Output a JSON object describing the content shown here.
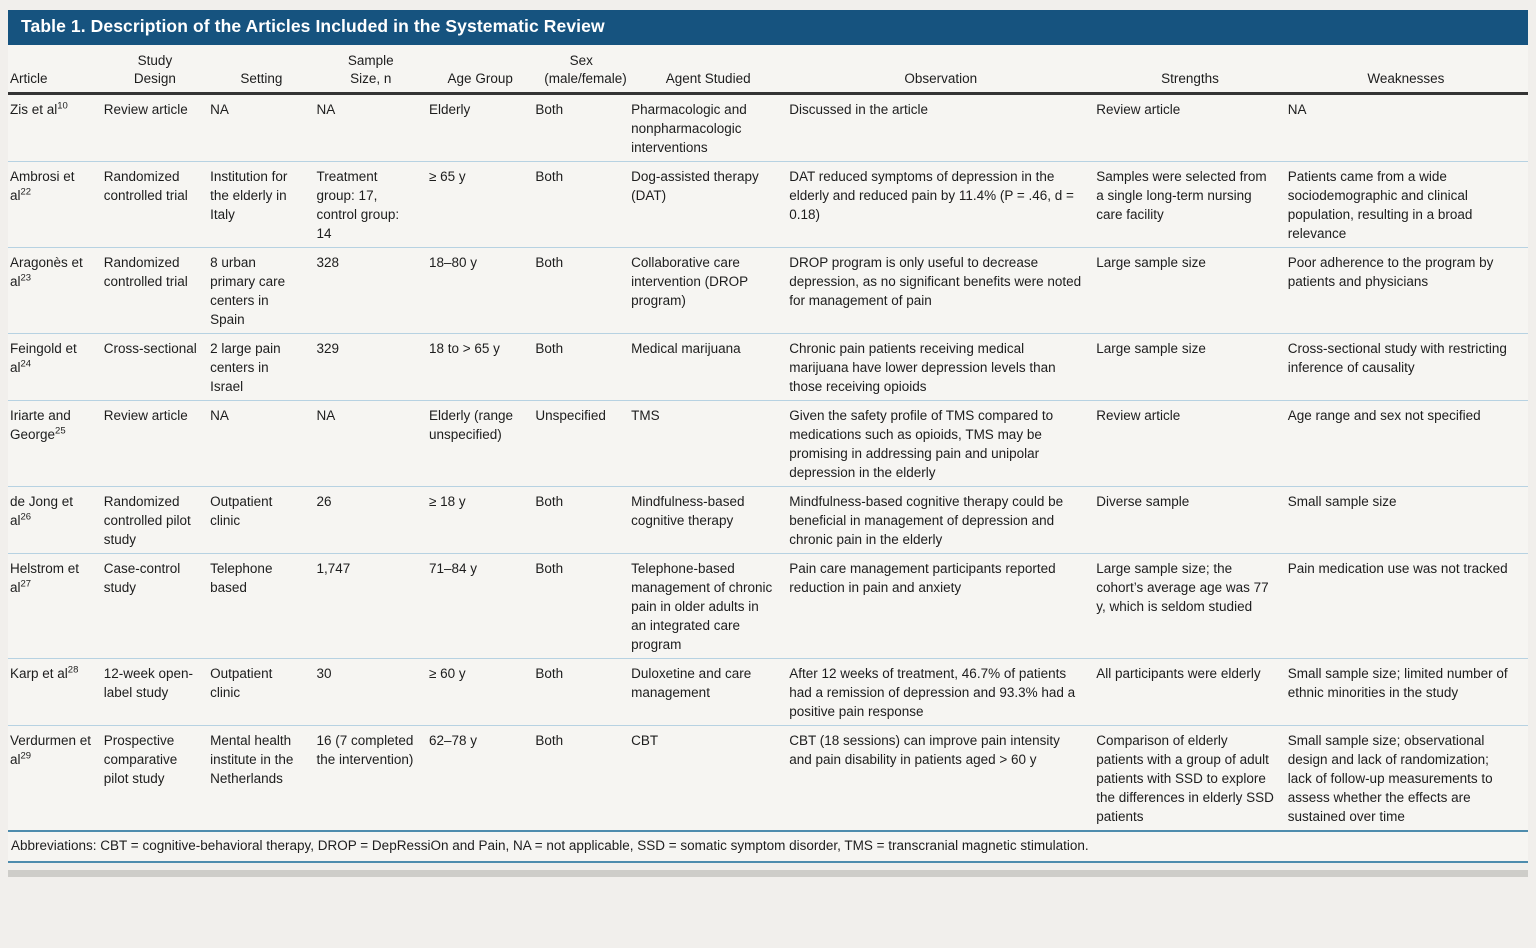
{
  "title": "Table 1. Description of the Articles Included in the Systematic Review",
  "footnote": "Abbreviations: CBT = cognitive-behavioral therapy, DROP = DepRessiOn and Pain, NA = not applicable, SSD = somatic symptom disorder, TMS = transcranial magnetic stimulation.",
  "colors": {
    "title_bar": "#16537f",
    "header_rule": "#343434",
    "row_divider": "#b7d2e2",
    "foot_rule": "#4e8cad",
    "table_background": "#f6f5f2"
  },
  "columns": [
    {
      "label": "Article"
    },
    {
      "label": "Study Design"
    },
    {
      "label": "Setting"
    },
    {
      "label": "Sample Size, n"
    },
    {
      "label": "Age Group"
    },
    {
      "label": "Sex (male/female)"
    },
    {
      "label": "Agent Studied"
    },
    {
      "label": "Observation"
    },
    {
      "label": "Strengths"
    },
    {
      "label": "Weaknesses"
    }
  ],
  "rows": [
    {
      "article": "Zis et al",
      "ref": "10",
      "design": "Review article",
      "setting": "NA",
      "sample": "NA",
      "age": "Elderly",
      "sex": "Both",
      "agent": "Pharmacologic and nonpharmacologic interventions",
      "observation": "Discussed in the article",
      "strengths": "Review article",
      "weaknesses": "NA"
    },
    {
      "article": "Ambrosi et al",
      "ref": "22",
      "design": "Randomized controlled trial",
      "setting": "Institution for the elderly in Italy",
      "sample": "Treatment group: 17, control group: 14",
      "age": "≥ 65 y",
      "sex": "Both",
      "agent": "Dog-assisted therapy (DAT)",
      "observation": "DAT reduced symptoms of depression in the elderly and reduced pain by 11.4% (P = .46, d = 0.18)",
      "strengths": "Samples were selected from a single long-term nursing care facility",
      "weaknesses": "Patients came from a wide sociodemographic and clinical population, resulting in a broad relevance"
    },
    {
      "article": "Aragonès et al",
      "ref": "23",
      "design": "Randomized controlled trial",
      "setting": "8 urban primary care centers in Spain",
      "sample": "328",
      "age": "18–80 y",
      "sex": "Both",
      "agent": "Collaborative care intervention (DROP program)",
      "observation": "DROP program is only useful to decrease depression, as no significant benefits were noted for management of pain",
      "strengths": "Large sample size",
      "weaknesses": "Poor adherence to the program by patients and physicians"
    },
    {
      "article": "Feingold et al",
      "ref": "24",
      "design": "Cross-sectional",
      "setting": "2 large pain centers in Israel",
      "sample": "329",
      "age": "18 to > 65 y",
      "sex": "Both",
      "agent": "Medical marijuana",
      "observation": "Chronic pain patients receiving medical marijuana have lower depression levels than those receiving opioids",
      "strengths": "Large sample size",
      "weaknesses": "Cross-sectional study with restricting inference of causality"
    },
    {
      "article": "Iriarte and George",
      "ref": "25",
      "design": "Review article",
      "setting": "NA",
      "sample": "NA",
      "age": "Elderly (range unspecified)",
      "sex": "Unspecified",
      "agent": "TMS",
      "observation": "Given the safety profile of TMS compared to medications such as opioids, TMS may be promising in addressing pain and unipolar depression in the elderly",
      "strengths": "Review article",
      "weaknesses": "Age range and sex not specified"
    },
    {
      "article": "de Jong et al",
      "ref": "26",
      "design": "Randomized controlled pilot study",
      "setting": "Outpatient clinic",
      "sample": "26",
      "age": "≥ 18 y",
      "sex": "Both",
      "agent": "Mindfulness-based cognitive therapy",
      "observation": "Mindfulness-based cognitive therapy could be beneficial in management of depression and chronic pain in the elderly",
      "strengths": "Diverse sample",
      "weaknesses": "Small sample size"
    },
    {
      "article": "Helstrom et al",
      "ref": "27",
      "design": "Case-control study",
      "setting": "Telephone based",
      "sample": "1,747",
      "age": "71–84 y",
      "sex": "Both",
      "agent": "Telephone-based management of chronic pain in older adults in an integrated care program",
      "observation": "Pain care management participants reported reduction in pain and anxiety",
      "strengths": "Large sample size; the cohort’s average age was 77 y, which is seldom studied",
      "weaknesses": "Pain medication use was not tracked"
    },
    {
      "article": "Karp et al",
      "ref": "28",
      "design": "12-week open-label study",
      "setting": "Outpatient clinic",
      "sample": "30",
      "age": "≥ 60 y",
      "sex": "Both",
      "agent": "Duloxetine and care management",
      "observation": "After 12 weeks of treatment, 46.7% of patients had a remission of depression and 93.3% had a positive pain response",
      "strengths": "All participants were elderly",
      "weaknesses": "Small sample size; limited number of ethnic minorities in the study"
    },
    {
      "article": "Verdurmen et al",
      "ref": "29",
      "design": "Prospective comparative pilot study",
      "setting": "Mental health institute in the Netherlands",
      "sample": "16 (7 completed the intervention)",
      "age": "62–78 y",
      "sex": "Both",
      "agent": "CBT",
      "observation": "CBT (18 sessions) can improve pain intensity and pain disability in patients aged > 60 y",
      "strengths": "Comparison of elderly patients with a group of adult patients with SSD to explore the differences in elderly SSD patients",
      "weaknesses": "Small sample size; observational design and lack of randomization; lack of follow-up measurements to assess whether the effects are sustained over time"
    }
  ]
}
